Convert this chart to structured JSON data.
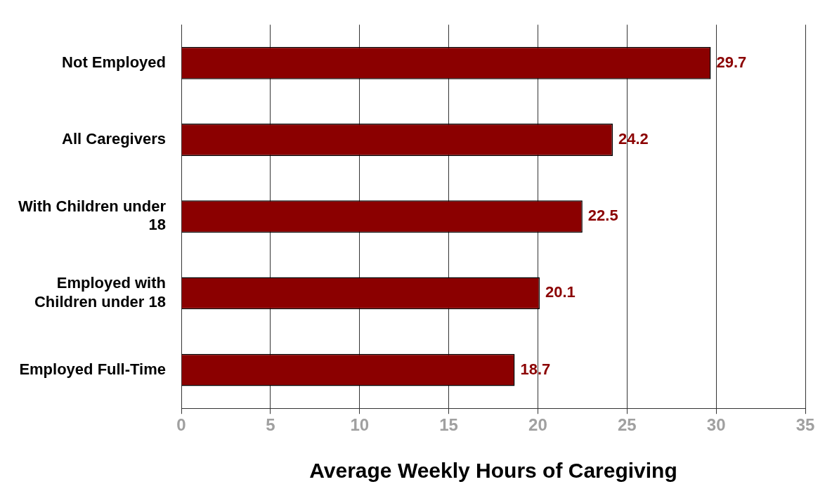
{
  "chart_data": {
    "type": "bar",
    "orientation": "horizontal",
    "xlabel": "Average Weekly Hours of Caregiving",
    "categories": [
      "Not Employed",
      "All Caregivers",
      "With Children under 18",
      "Employed with Children under 18",
      "Employed Full-Time"
    ],
    "values": [
      29.7,
      24.2,
      22.5,
      20.1,
      18.7
    ],
    "color": "#8b0000",
    "xlim": [
      0,
      35
    ],
    "xticks": [
      0,
      5,
      10,
      15,
      20,
      25,
      30,
      35
    ],
    "grid": "x",
    "data_labels": true
  }
}
